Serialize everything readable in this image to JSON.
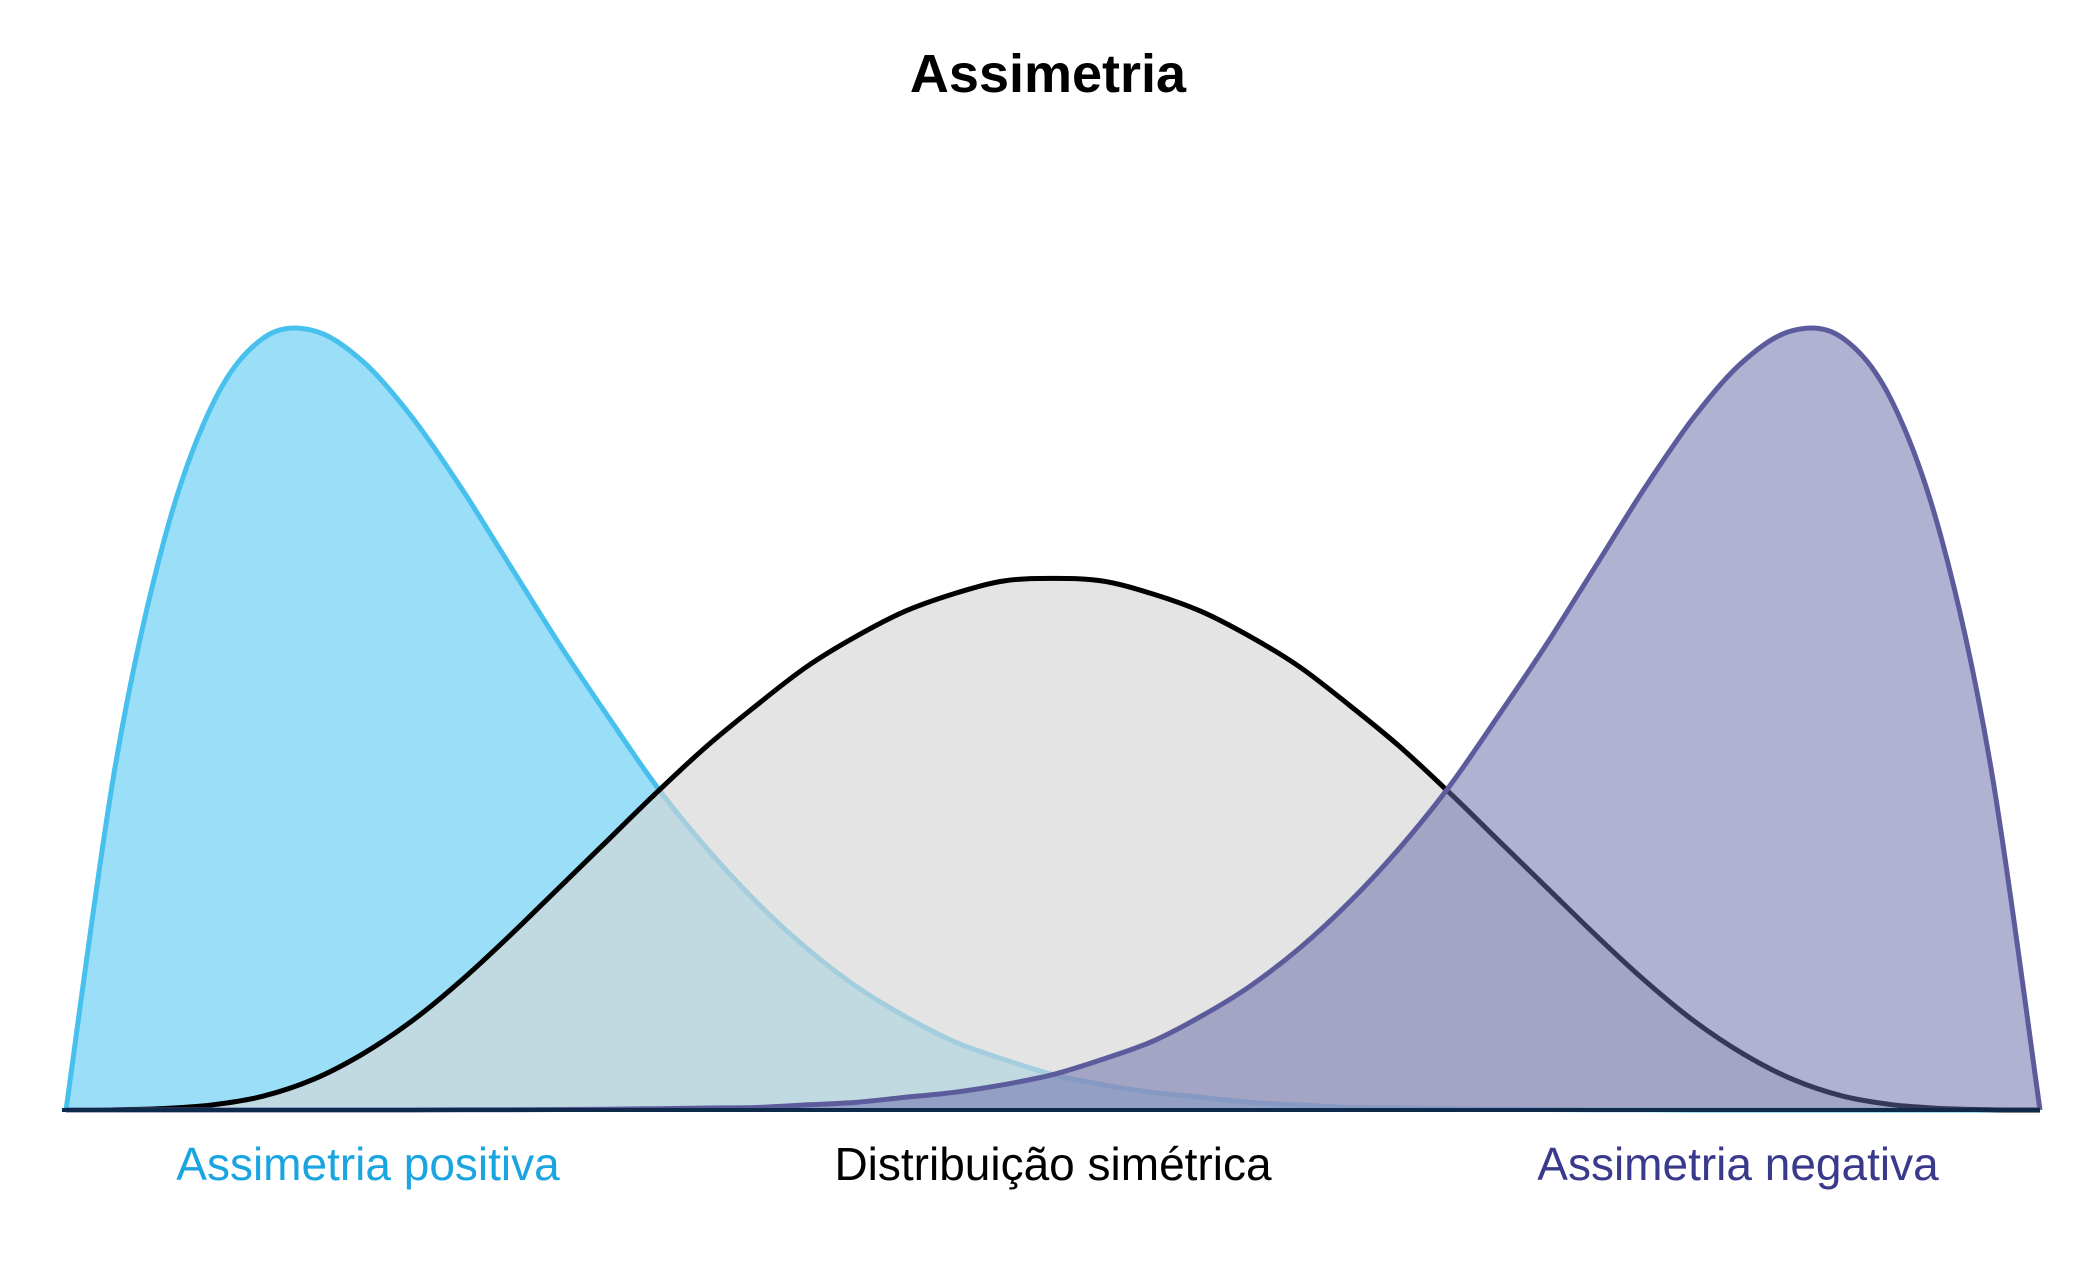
{
  "chart_data": {
    "type": "area",
    "title": "Assimetria",
    "xlabel": "",
    "ylabel": "",
    "xlim": [
      0,
      1
    ],
    "ylim": [
      0,
      3.2
    ],
    "grid": false,
    "legend": "none",
    "series": [
      {
        "name": "Assimetria positiva",
        "label_color": "#1aa5e0",
        "fill": "#35bdf0",
        "fill_opacity": 0.5,
        "stroke": "#47c0ee",
        "x": [
          0,
          0.025,
          0.05,
          0.075,
          0.1,
          0.125,
          0.15,
          0.175,
          0.2,
          0.225,
          0.25,
          0.275,
          0.3,
          0.325,
          0.35,
          0.375,
          0.4,
          0.425,
          0.45,
          0.475,
          0.5,
          0.525,
          0.55,
          0.575,
          0.6,
          0.625,
          0.65,
          0.675,
          0.7,
          0.725,
          0.75,
          0.775,
          0.8,
          0.825,
          0.85,
          0.875,
          0.9,
          0.925,
          0.95,
          0.975,
          1
        ],
        "values": [
          0,
          1.36,
          2.26,
          2.8,
          3.05,
          3.08,
          2.96,
          2.74,
          2.46,
          2.15,
          1.84,
          1.55,
          1.27,
          1.03,
          0.82,
          0.64,
          0.49,
          0.37,
          0.27,
          0.2,
          0.14,
          0.1,
          0.07,
          0.05,
          0.03,
          0.02,
          0.01,
          0.008,
          0.005,
          0.003,
          0.002,
          0.001,
          0.001,
          0,
          0,
          0,
          0,
          0,
          0,
          0,
          0
        ]
      },
      {
        "name": "Distribuição simétrica",
        "label_color": "#000000",
        "fill": "#d6d6d6",
        "fill_opacity": 0.65,
        "stroke": "#000000",
        "x": [
          0,
          0.025,
          0.05,
          0.075,
          0.1,
          0.125,
          0.15,
          0.175,
          0.2,
          0.225,
          0.25,
          0.275,
          0.3,
          0.325,
          0.35,
          0.375,
          0.4,
          0.425,
          0.45,
          0.475,
          0.5,
          0.525,
          0.55,
          0.575,
          0.6,
          0.625,
          0.65,
          0.675,
          0.7,
          0.725,
          0.75,
          0.775,
          0.8,
          0.825,
          0.85,
          0.875,
          0.9,
          0.925,
          0.95,
          0.975,
          1
        ],
        "values": [
          0,
          0.001,
          0.006,
          0.021,
          0.055,
          0.12,
          0.22,
          0.35,
          0.51,
          0.69,
          0.88,
          1.07,
          1.26,
          1.44,
          1.6,
          1.75,
          1.87,
          1.97,
          2.04,
          2.09,
          2.1,
          2.09,
          2.04,
          1.97,
          1.87,
          1.75,
          1.6,
          1.44,
          1.26,
          1.07,
          0.88,
          0.69,
          0.51,
          0.35,
          0.22,
          0.12,
          0.055,
          0.021,
          0.006,
          0.001,
          0
        ]
      },
      {
        "name": "Assimetria negativa",
        "label_color": "#3a3a8c",
        "fill": "#6a6aa8",
        "fill_opacity": 0.52,
        "stroke": "#5c5c9c",
        "x": [
          0,
          0.025,
          0.05,
          0.075,
          0.1,
          0.125,
          0.15,
          0.175,
          0.2,
          0.225,
          0.25,
          0.275,
          0.3,
          0.325,
          0.35,
          0.375,
          0.4,
          0.425,
          0.45,
          0.475,
          0.5,
          0.525,
          0.55,
          0.575,
          0.6,
          0.625,
          0.65,
          0.675,
          0.7,
          0.725,
          0.75,
          0.775,
          0.8,
          0.825,
          0.85,
          0.875,
          0.9,
          0.925,
          0.95,
          0.975,
          1
        ],
        "values": [
          0,
          0,
          0,
          0,
          0,
          0,
          0,
          0,
          0.001,
          0.001,
          0.002,
          0.003,
          0.005,
          0.008,
          0.01,
          0.02,
          0.03,
          0.05,
          0.07,
          0.1,
          0.14,
          0.2,
          0.27,
          0.37,
          0.49,
          0.64,
          0.82,
          1.03,
          1.27,
          1.55,
          1.84,
          2.15,
          2.46,
          2.74,
          2.96,
          3.08,
          3.05,
          2.8,
          2.26,
          1.36,
          0
        ]
      }
    ]
  }
}
